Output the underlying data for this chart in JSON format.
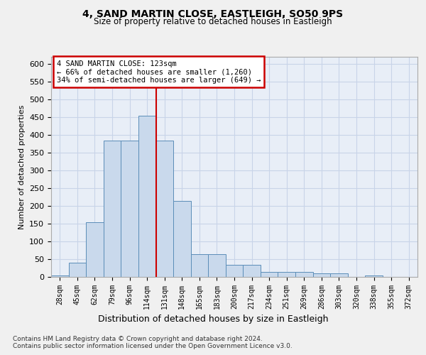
{
  "title": "4, SAND MARTIN CLOSE, EASTLEIGH, SO50 9PS",
  "subtitle": "Size of property relative to detached houses in Eastleigh",
  "xlabel_bottom": "Distribution of detached houses by size in Eastleigh",
  "ylabel": "Number of detached properties",
  "footnote1": "Contains HM Land Registry data © Crown copyright and database right 2024.",
  "footnote2": "Contains public sector information licensed under the Open Government Licence v3.0.",
  "bin_labels": [
    "28sqm",
    "45sqm",
    "62sqm",
    "79sqm",
    "96sqm",
    "114sqm",
    "131sqm",
    "148sqm",
    "165sqm",
    "183sqm",
    "200sqm",
    "217sqm",
    "234sqm",
    "251sqm",
    "269sqm",
    "286sqm",
    "303sqm",
    "320sqm",
    "338sqm",
    "355sqm",
    "372sqm"
  ],
  "values": [
    5,
    40,
    155,
    385,
    385,
    455,
    385,
    215,
    65,
    65,
    35,
    35,
    15,
    15,
    15,
    10,
    10,
    0,
    5,
    0,
    0
  ],
  "bar_color": "#c9d9ec",
  "bar_edge_color": "#5b8db8",
  "annotation_lines": [
    "4 SAND MARTIN CLOSE: 123sqm",
    "← 66% of detached houses are smaller (1,260)",
    "34% of semi-detached houses are larger (649) →"
  ],
  "annotation_box_color": "#ffffff",
  "annotation_box_edge": "#cc0000",
  "grid_color": "#c8d4e8",
  "background_color": "#e8eef7",
  "fig_background": "#f0f0f0",
  "ylim": [
    0,
    620
  ],
  "yticks": [
    0,
    50,
    100,
    150,
    200,
    250,
    300,
    350,
    400,
    450,
    500,
    550,
    600
  ]
}
